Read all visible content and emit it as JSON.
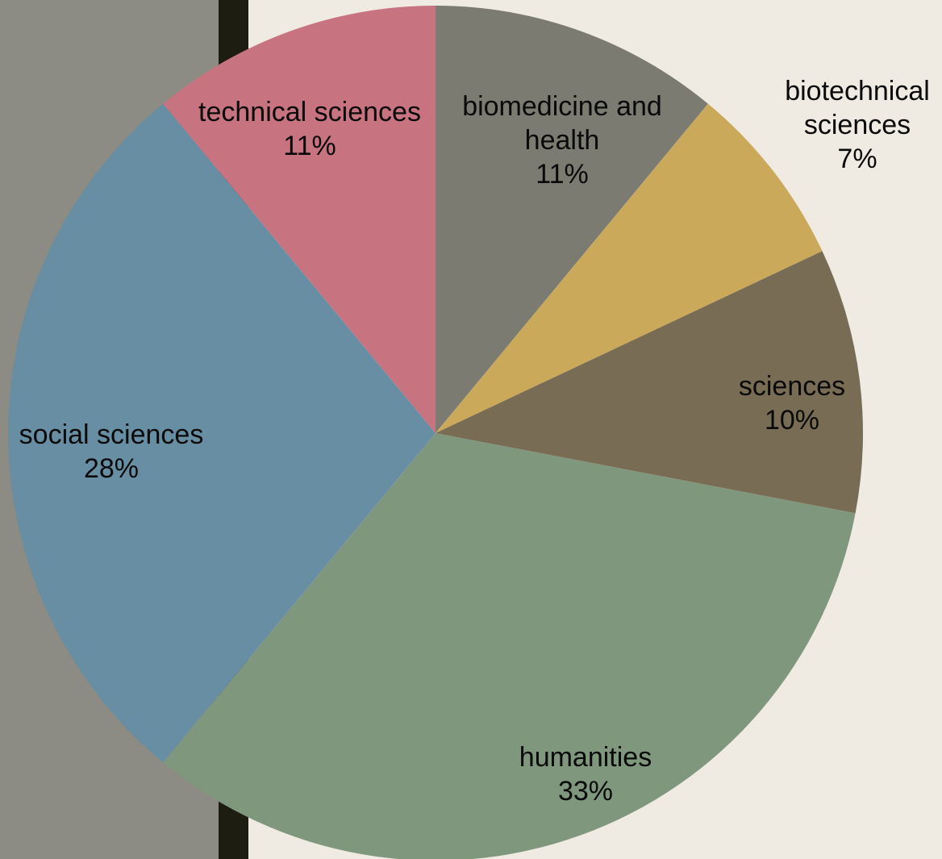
{
  "chart_data": {
    "type": "pie",
    "title": "",
    "start_angle_deg": 0,
    "direction": "clockwise",
    "slices": [
      {
        "label": "biomedicine and health",
        "label_lines": [
          "biomedicine and",
          "health"
        ],
        "value": 11,
        "value_label": "11%",
        "color": "#7b7b72"
      },
      {
        "label": "biotechnical sciences",
        "label_lines": [
          "biotechnical",
          "sciences"
        ],
        "value": 7,
        "value_label": "7%",
        "color": "#cba95b"
      },
      {
        "label": "sciences",
        "label_lines": [
          "sciences"
        ],
        "value": 10,
        "value_label": "10%",
        "color": "#796c55"
      },
      {
        "label": "humanities",
        "label_lines": [
          "humanities"
        ],
        "value": 33,
        "value_label": "33%",
        "color": "#7f977d"
      },
      {
        "label": "social sciences",
        "label_lines": [
          "social sciences"
        ],
        "value": 28,
        "value_label": "28%",
        "color": "#688ea3"
      },
      {
        "label": "technical sciences",
        "label_lines": [
          "technical sciences"
        ],
        "value": 11,
        "value_label": "11%",
        "color": "#c87380"
      }
    ]
  },
  "background": {
    "panel_color": "#8c8b84",
    "bar_color": "#1e1d12",
    "page_color": "#efebe3"
  }
}
